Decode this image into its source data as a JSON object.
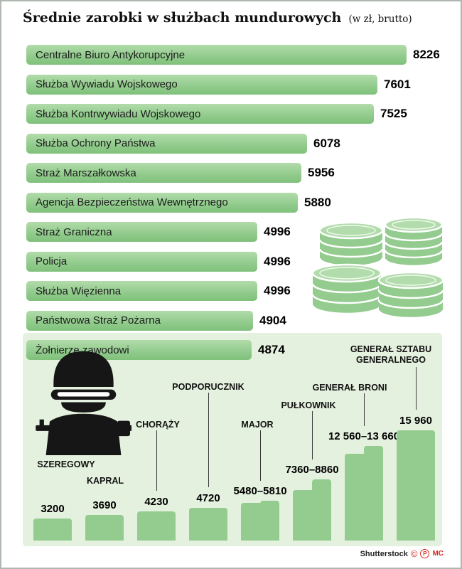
{
  "title": {
    "main": "Średnie zarobki w służbach mundurowych",
    "suffix": "(w zł, brutto)"
  },
  "colors": {
    "bar_green": "#93cc8e",
    "bar_green_light": "#b2dcab",
    "bar_green_dark": "#7fc17b",
    "panel_green": "#e5f1df",
    "accent_red": "#d42a1e",
    "ink": "#161616"
  },
  "chart_data": [
    {
      "type": "bar",
      "orientation": "horizontal",
      "title": "Średnie zarobki w służbach mundurowych (w zł, brutto)",
      "categories": [
        "Centralne Biuro Antykorupcyjne",
        "Służba Wywiadu Wojskowego",
        "Służba Kontrwywiadu Wojskowego",
        "Służba Ochrony Państwa",
        "Straż Marszałkowska",
        "Agencja Bezpieczeństwa Wewnętrznego",
        "Straż Graniczna",
        "Policja",
        "Służba Więzienna",
        "Państwowa Straż Pożarna",
        "Żołnierze zawodowi"
      ],
      "values": [
        8226,
        7601,
        7525,
        6078,
        5956,
        5880,
        4996,
        4996,
        4996,
        4904,
        4874
      ],
      "xlim": [
        0,
        8226
      ]
    },
    {
      "type": "bar",
      "orientation": "vertical",
      "categories": [
        "SZEREGOWY",
        "KAPRAL",
        "CHORĄŻY",
        "PODPORUCZNIK",
        "MAJOR",
        "PUŁKOWNIK",
        "GENERAŁ BRONI",
        "GENERAŁ SZTABU GENERALNEGO"
      ],
      "value_labels": [
        "3200",
        "3690",
        "4230",
        "4720",
        "5480–5810",
        "7360–8860",
        "12 560–13 660",
        "15 960"
      ],
      "value_ranges": [
        [
          3200,
          3200
        ],
        [
          3690,
          3690
        ],
        [
          4230,
          4230
        ],
        [
          4720,
          4720
        ],
        [
          5480,
          5810
        ],
        [
          7360,
          8860
        ],
        [
          12560,
          13660
        ],
        [
          15960,
          15960
        ]
      ],
      "ylim": [
        0,
        15960
      ]
    }
  ],
  "icons": {
    "coins": "coins-icon",
    "soldier": "soldier-icon"
  },
  "footer": {
    "credit": "Shutterstock",
    "mark_copyright": "©",
    "mark_p": "P",
    "mark_mc": "MC"
  }
}
